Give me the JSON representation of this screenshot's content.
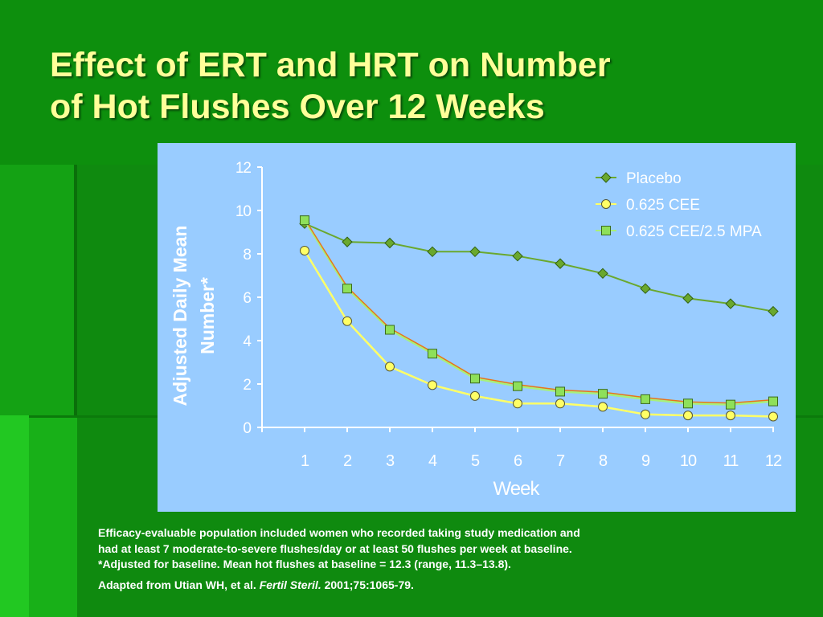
{
  "slide": {
    "title_line1": "Effect of ERT and HRT on Number",
    "title_line2": "of Hot Flushes Over 12 Weeks",
    "footnote_line1": "Efficacy-evaluable population included women who recorded taking study medication and",
    "footnote_line2": "had at least 7 moderate-to-severe flushes/day or at least 50 flushes per week at baseline.",
    "footnote_line3": "*Adjusted for baseline. Mean hot flushes at baseline = 12.3 (range, 11.3–13.8).",
    "source_prefix": "Adapted from Utian WH, et al. ",
    "source_journal": "Fertil Steril.",
    "source_suffix": " 2001;75:1065-79."
  },
  "colors": {
    "background": "#118a11",
    "title": "#ffff99",
    "chart_background": "#99ccff",
    "placebo": "#6aa82e",
    "cee": "#ffff66",
    "cee_mpa_line": "#e8751a",
    "cee_mpa_line2": "#a8f07a",
    "cee_mpa_marker": "#8ee05a"
  },
  "chart_data": {
    "type": "line",
    "xlabel": "Week",
    "ylabel_line1": "Adjusted Daily Mean",
    "ylabel_line2": "Number*",
    "x": [
      1,
      2,
      3,
      4,
      5,
      6,
      7,
      8,
      9,
      10,
      11,
      12
    ],
    "ylim": [
      0,
      12
    ],
    "yticks": [
      0,
      2,
      4,
      6,
      8,
      10,
      12
    ],
    "legend_position": "top-right",
    "grid": false,
    "series": [
      {
        "name": "Placebo",
        "marker": "diamond",
        "values": [
          9.4,
          8.55,
          8.5,
          8.1,
          8.1,
          7.9,
          7.55,
          7.1,
          6.4,
          5.95,
          5.7,
          5.35
        ]
      },
      {
        "name": "0.625 CEE",
        "marker": "circle",
        "values": [
          8.15,
          4.9,
          2.8,
          1.95,
          1.45,
          1.1,
          1.1,
          0.95,
          0.6,
          0.55,
          0.55,
          0.5
        ]
      },
      {
        "name": "0.625 CEE/2.5 MPA",
        "marker": "square",
        "values": [
          9.55,
          6.4,
          4.5,
          3.4,
          2.25,
          1.9,
          1.65,
          1.55,
          1.3,
          1.1,
          1.05,
          1.2
        ]
      }
    ]
  }
}
